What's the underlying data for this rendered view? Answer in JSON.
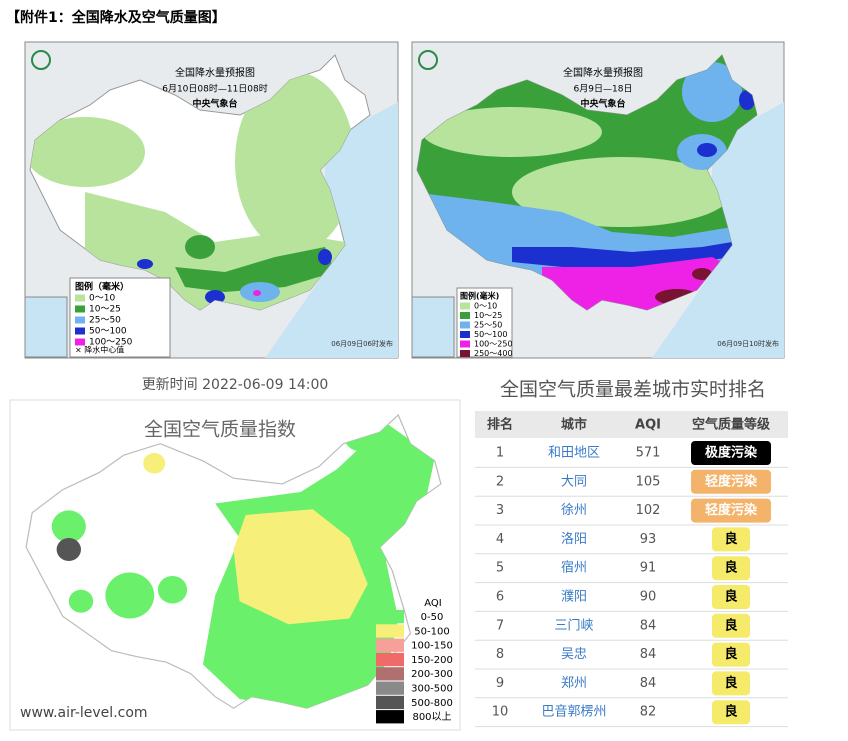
{
  "header": "【附件1：全国降水及空气质量图】",
  "maps": [
    {
      "title": "全国降水量预报图",
      "period": "6月10日08时—11日08时",
      "agency": "中央气象台",
      "legend_title": "图例（毫米）",
      "legend": [
        {
          "label": "0～10",
          "color": "#b7e39c"
        },
        {
          "label": "10～25",
          "color": "#3aa13a"
        },
        {
          "label": "25～50",
          "color": "#6eb2ee"
        },
        {
          "label": "50～100",
          "color": "#1c2fcf"
        },
        {
          "label": "100～250",
          "color": "#ee22e6"
        }
      ],
      "center_mark": "× 降水中心值",
      "issued": "06月09日06时发布"
    },
    {
      "title": "全国降水量预报图",
      "period": "6月9日—18日",
      "agency": "中央气象台",
      "legend_title": "图例(毫米)",
      "legend": [
        {
          "label": "0～10",
          "color": "#b7e39c"
        },
        {
          "label": "10～25",
          "color": "#3aa13a"
        },
        {
          "label": "25～50",
          "color": "#6eb2ee"
        },
        {
          "label": "50～100",
          "color": "#1c2fcf"
        },
        {
          "label": "100～250",
          "color": "#ee22e6"
        },
        {
          "label": "250～400",
          "color": "#7a1232"
        }
      ],
      "issued": "06月09日10时发布"
    }
  ],
  "aqi_map": {
    "update_time": "更新时间 2022-06-09 14:00",
    "title": "全国空气质量指数",
    "legend_title": "AQI",
    "legend": [
      {
        "label": "0-50",
        "color": "#6bf06b"
      },
      {
        "label": "50-100",
        "color": "#f6f07a"
      },
      {
        "label": "100-150",
        "color": "#f7a09a"
      },
      {
        "label": "150-200",
        "color": "#f06a6a"
      },
      {
        "label": "200-300",
        "color": "#b07070"
      },
      {
        "label": "300-500",
        "color": "#8a8a8a"
      },
      {
        "label": "500-800",
        "color": "#555555"
      },
      {
        "label": "800以上",
        "color": "#000000"
      }
    ],
    "footer": "www.air-level.com"
  },
  "table": {
    "title": "全国空气质量最差城市实时排名",
    "columns": [
      "排名",
      "城市",
      "AQI",
      "空气质量等级"
    ],
    "rows": [
      {
        "rank": 1,
        "city": "和田地区",
        "aqi": 571,
        "level": "极度污染",
        "badge": "#000000"
      },
      {
        "rank": 2,
        "city": "大同",
        "aqi": 105,
        "level": "轻度污染",
        "badge": "#f4b36a"
      },
      {
        "rank": 3,
        "city": "徐州",
        "aqi": 102,
        "level": "轻度污染",
        "badge": "#f4b36a"
      },
      {
        "rank": 4,
        "city": "洛阳",
        "aqi": 93,
        "level": "良",
        "badge": "#f5ea6a"
      },
      {
        "rank": 5,
        "city": "宿州",
        "aqi": 91,
        "level": "良",
        "badge": "#f5ea6a"
      },
      {
        "rank": 6,
        "city": "濮阳",
        "aqi": 90,
        "level": "良",
        "badge": "#f5ea6a"
      },
      {
        "rank": 7,
        "city": "三门峡",
        "aqi": 84,
        "level": "良",
        "badge": "#f5ea6a"
      },
      {
        "rank": 8,
        "city": "吴忠",
        "aqi": 84,
        "level": "良",
        "badge": "#f5ea6a"
      },
      {
        "rank": 9,
        "city": "郑州",
        "aqi": 84,
        "level": "良",
        "badge": "#f5ea6a"
      },
      {
        "rank": 10,
        "city": "巴音郭楞州",
        "aqi": 82,
        "level": "良",
        "badge": "#f5ea6a"
      }
    ]
  }
}
